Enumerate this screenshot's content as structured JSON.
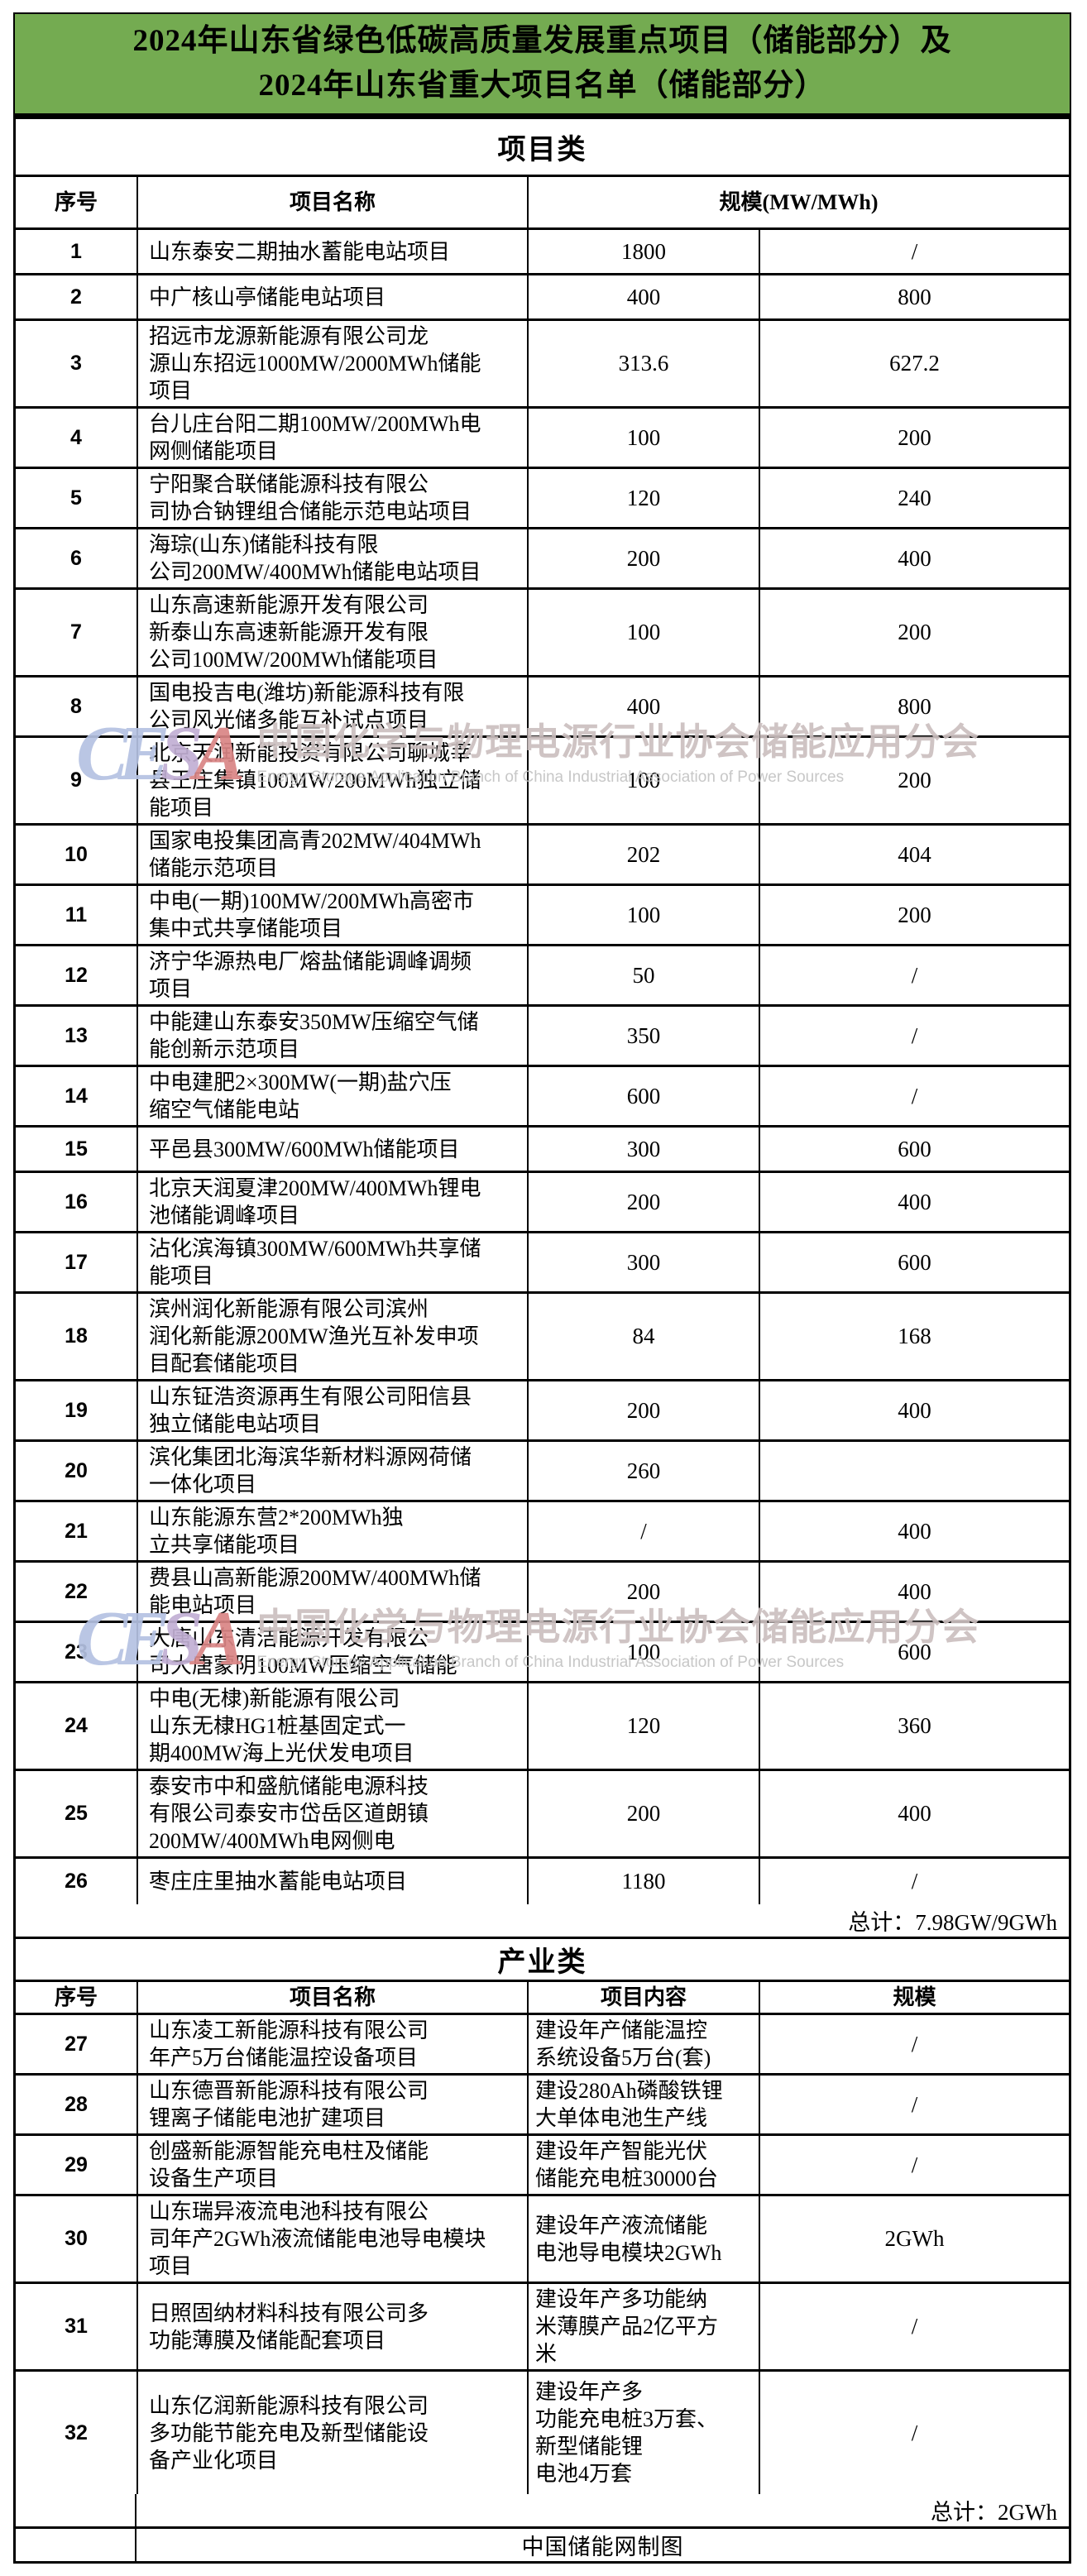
{
  "title": {
    "line1": "2024年山东省绿色低碳高质量发展重点项目（储能部分）及",
    "line2": "2024年山东省重大项目名单（储能部分）"
  },
  "colors": {
    "banner_green": "#74ab51",
    "border_black": "#000000",
    "watermark_pink_gray": "#cbbfbf"
  },
  "project_section": {
    "header": "项目类",
    "columns": {
      "no": "序号",
      "name": "项目名称",
      "scale": "规模(MW/MWh)"
    },
    "rows": [
      {
        "no": "1",
        "name": "山东泰安二期抽水蓄能电站项目",
        "mw": "1800",
        "mwh": "/"
      },
      {
        "no": "2",
        "name": "中广核山亭储能电站项目",
        "mw": "400",
        "mwh": "800"
      },
      {
        "no": "3",
        "name": "招远市龙源新能源有限公司龙\n源山东招远1000MW/2000MWh储能\n项目",
        "mw": "313.6",
        "mwh": "627.2"
      },
      {
        "no": "4",
        "name": "台儿庄台阳二期100MW/200MWh电\n网侧储能项目",
        "mw": "100",
        "mwh": "200"
      },
      {
        "no": "5",
        "name": "宁阳聚合联储能源科技有限公\n司协合钠锂组合储能示范电站项目",
        "mw": "120",
        "mwh": "240"
      },
      {
        "no": "6",
        "name": "海琮(山东)储能科技有限\n公司200MW/400MWh储能电站项目",
        "mw": "200",
        "mwh": "400"
      },
      {
        "no": "7",
        "name": "山东高速新能源开发有限公司\n新泰山东高速新能源开发有限\n公司100MW/200MWh储能项目",
        "mw": "100",
        "mwh": "200"
      },
      {
        "no": "8",
        "name": "国电投吉电(潍坊)新能源科技有限\n公司风光储多能互补试点项目",
        "mw": "400",
        "mwh": "800"
      },
      {
        "no": "9",
        "name": "北京天润新能投资有限公司聊城莘\n县王庄集镇100MW/200MWh独立储\n能项目",
        "mw": "100",
        "mwh": "200"
      },
      {
        "no": "10",
        "name": "国家电投集团高青202MW/404MWh\n储能示范项目",
        "mw": "202",
        "mwh": "404"
      },
      {
        "no": "11",
        "name": "中电(一期)100MW/200MWh高密市\n集中式共享储能项目",
        "mw": "100",
        "mwh": "200"
      },
      {
        "no": "12",
        "name": "济宁华源热电厂熔盐储能调峰调频\n项目",
        "mw": "50",
        "mwh": "/"
      },
      {
        "no": "13",
        "name": "中能建山东泰安350MW压缩空气储\n能创新示范项目",
        "mw": "350",
        "mwh": "/"
      },
      {
        "no": "14",
        "name": "中电建肥2×300MW(一期)盐穴压\n缩空气储能电站",
        "mw": "600",
        "mwh": "/"
      },
      {
        "no": "15",
        "name": "平邑县300MW/600MWh储能项目",
        "mw": "300",
        "mwh": "600"
      },
      {
        "no": "16",
        "name": "北京天润夏津200MW/400MWh锂电\n池储能调峰项目",
        "mw": "200",
        "mwh": "400"
      },
      {
        "no": "17",
        "name": "沾化滨海镇300MW/600MWh共享储\n能项目",
        "mw": "300",
        "mwh": "600"
      },
      {
        "no": "18",
        "name": "滨州润化新能源有限公司滨州\n润化新能源200MW渔光互补发申项\n目配套储能项目",
        "mw": "84",
        "mwh": "168"
      },
      {
        "no": "19",
        "name": "山东钲浩资源再生有限公司阳信县\n独立储能电站项目",
        "mw": "200",
        "mwh": "400"
      },
      {
        "no": "20",
        "name": "滨化集团北海滨华新材料源网荷储\n一体化项目",
        "mw": "260",
        "mwh": ""
      },
      {
        "no": "21",
        "name": "山东能源东营2*200MWh独\n立共享储能项目",
        "mw": "/",
        "mwh": "400"
      },
      {
        "no": "22",
        "name": "费县山高新能源200MW/400MWh储\n能电站项目",
        "mw": "200",
        "mwh": "400"
      },
      {
        "no": "23",
        "name": "大唐山东清洁能源开发有限公\n司大唐蒙阴100MW压缩空气储能",
        "mw": "100",
        "mwh": "600"
      },
      {
        "no": "24",
        "name": "中电(无棣)新能源有限公司\n山东无棣HG1桩基固定式一\n期400MW海上光伏发电项目",
        "mw": "120",
        "mwh": "360"
      },
      {
        "no": "25",
        "name": "泰安市中和盛航储能电源科技\n有限公司泰安市岱岳区道朗镇\n200MW/400MWh电网侧电",
        "mw": "200",
        "mwh": "400"
      },
      {
        "no": "26",
        "name": "枣庄庄里抽水蓄能电站项目",
        "mw": "1180",
        "mwh": "/"
      }
    ],
    "total": "总计：7.98GW/9GWh"
  },
  "industry_section": {
    "header": "产业类",
    "columns": {
      "no": "序号",
      "name": "项目名称",
      "content": "项目内容",
      "scale": "规模"
    },
    "rows": [
      {
        "no": "27",
        "name": "山东凌工新能源科技有限公司\n年产5万台储能温控设备项目",
        "content": "建设年产储能温控\n系统设备5万台(套)",
        "scale": "/"
      },
      {
        "no": "28",
        "name": "山东德晋新能源科技有限公司\n锂离子储能电池扩建项目",
        "content": "建设280Ah磷酸铁锂\n大单体电池生产线",
        "scale": "/"
      },
      {
        "no": "29",
        "name": "创盛新能源智能充电柱及储能\n设备生产项目",
        "content": "建设年产智能光伏\n储能充电桩30000台",
        "scale": "/"
      },
      {
        "no": "30",
        "name": "山东瑞异液流电池科技有限公\n司年产2GWh液流储能电池导电模块\n项目",
        "content": "建设年产液流储能\n电池导电模块2GWh",
        "scale": "2GWh"
      },
      {
        "no": "31",
        "name": "日照固纳材料科技有限公司多\n功能薄膜及储能配套项目",
        "content": "建设年产多功能纳\n米薄膜产品2亿平方\n米",
        "scale": "/"
      },
      {
        "no": "32",
        "name": "山东亿润新能源科技有限公司\n多功能节能充电及新型储能设\n备产业化项目",
        "content": "建设年产多\n功能充电桩3万套、\n新型储能锂\n电池4万套",
        "scale": "/"
      }
    ],
    "total": "总计：2GWh"
  },
  "footer": "中国储能网制图",
  "watermark": {
    "logo_letters": [
      "C",
      "E",
      "S",
      "A"
    ],
    "zh": "中国化学与物理电源行业协会储能应用分会",
    "en": "Energy Storage Application Branch of China Industrial Association of Power Sources"
  }
}
